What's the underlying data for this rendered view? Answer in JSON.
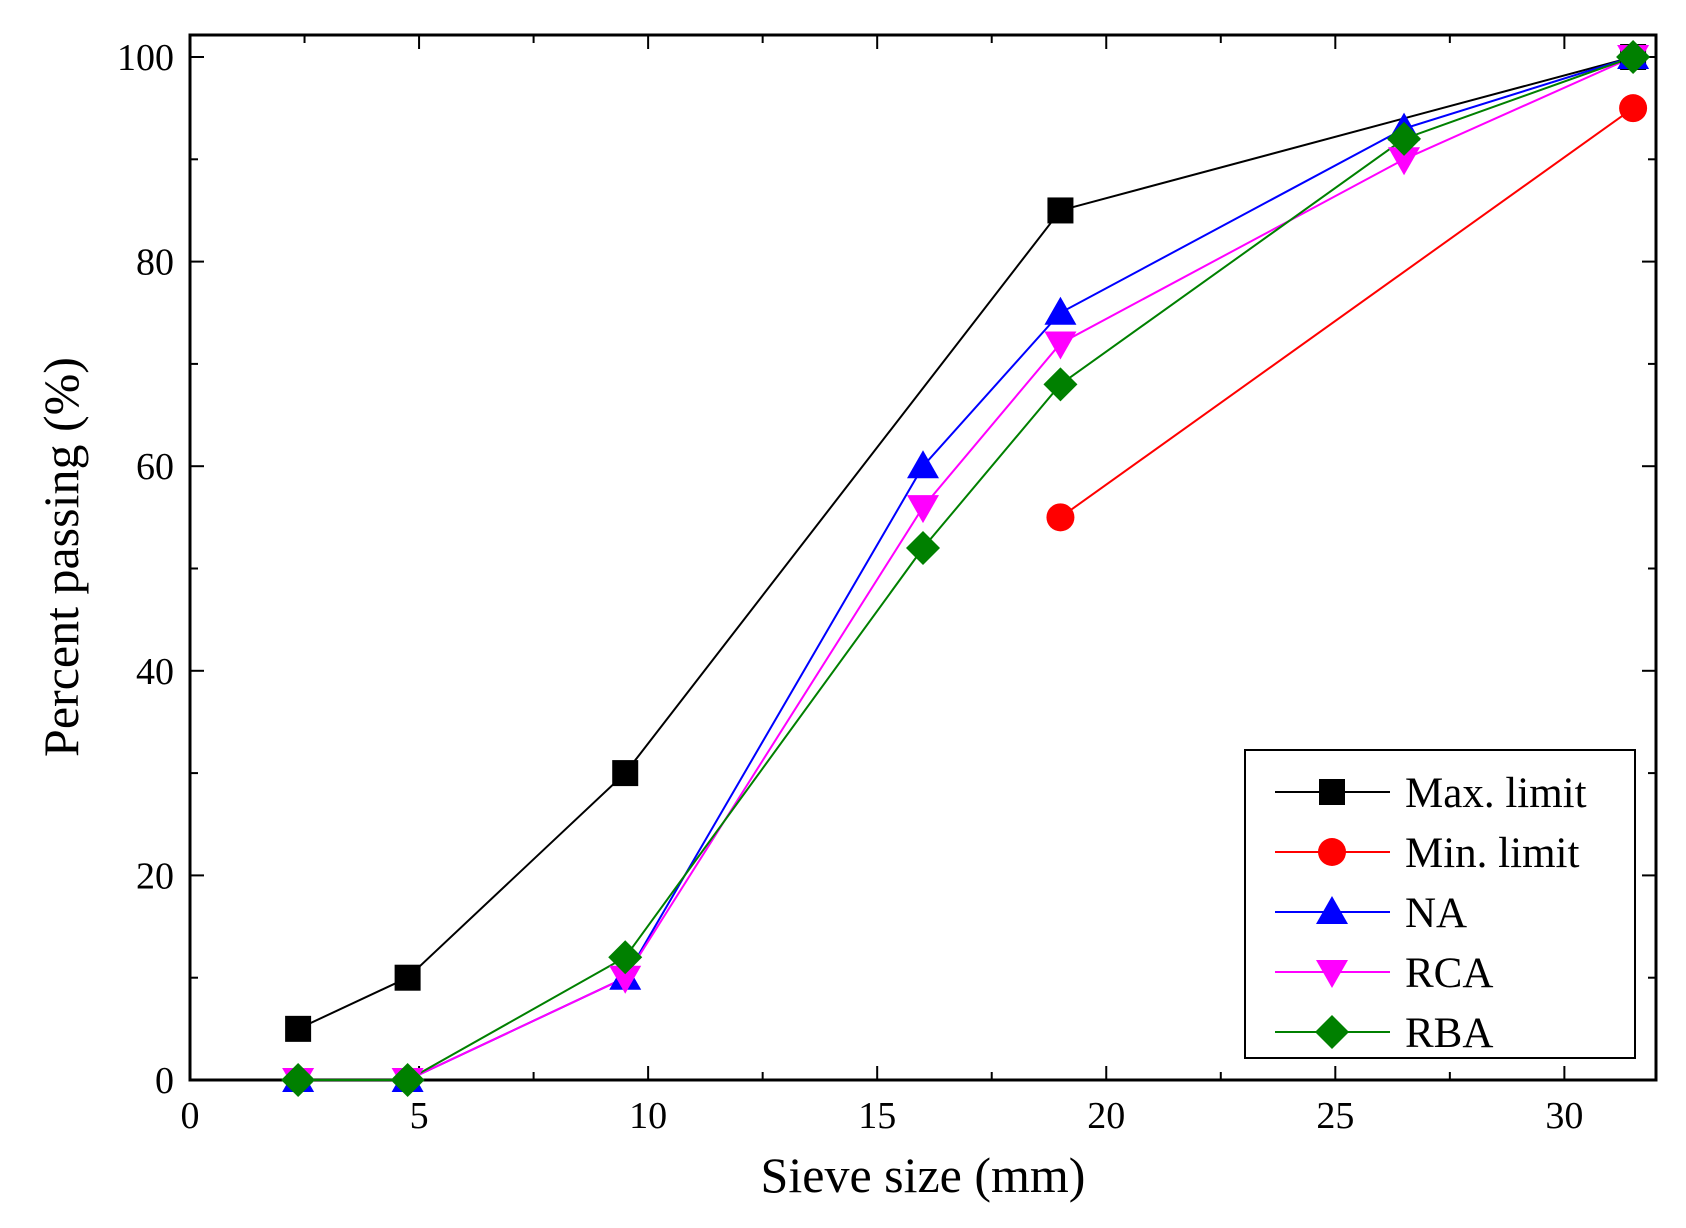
{
  "chart_data": {
    "type": "line",
    "xlabel": "Sieve size (mm)",
    "ylabel": "Percent passing (%)",
    "xlim": [
      0,
      32
    ],
    "ylim": [
      0,
      100
    ],
    "x_ticks": [
      0,
      5,
      10,
      15,
      20,
      25,
      30
    ],
    "x_tick_labels": [
      "0",
      "5",
      "10",
      "15",
      "20",
      "25",
      "30"
    ],
    "y_ticks": [
      0,
      20,
      40,
      60,
      80,
      100
    ],
    "y_tick_labels": [
      "0",
      "20",
      "40",
      "60",
      "80",
      "100"
    ],
    "grid": false,
    "legend_position": "bottom-right",
    "series": [
      {
        "name": "Max. limit",
        "color": "#000000",
        "marker": "square",
        "x": [
          2.36,
          4.75,
          9.5,
          19,
          31.5
        ],
        "y": [
          5,
          10,
          30,
          85,
          100
        ]
      },
      {
        "name": "Min. limit",
        "color": "#ff0000",
        "marker": "circle",
        "x": [
          19,
          31.5
        ],
        "y": [
          55,
          95
        ]
      },
      {
        "name": "NA",
        "color": "#0000ff",
        "marker": "triangle-up",
        "x": [
          2.36,
          4.75,
          9.5,
          16,
          19,
          26.5,
          31.5
        ],
        "y": [
          0,
          0,
          10,
          60,
          75,
          93,
          100
        ]
      },
      {
        "name": "RCA",
        "color": "#ff00ff",
        "marker": "triangle-down",
        "x": [
          2.36,
          4.75,
          9.5,
          16,
          19,
          26.5,
          31.5
        ],
        "y": [
          0,
          0,
          10,
          56,
          72,
          90,
          100
        ]
      },
      {
        "name": "RBA",
        "color": "#008000",
        "marker": "diamond",
        "x": [
          2.36,
          4.75,
          9.5,
          16,
          19,
          26.5,
          31.5
        ],
        "y": [
          0,
          0,
          12,
          52,
          68,
          92,
          100
        ]
      }
    ]
  }
}
